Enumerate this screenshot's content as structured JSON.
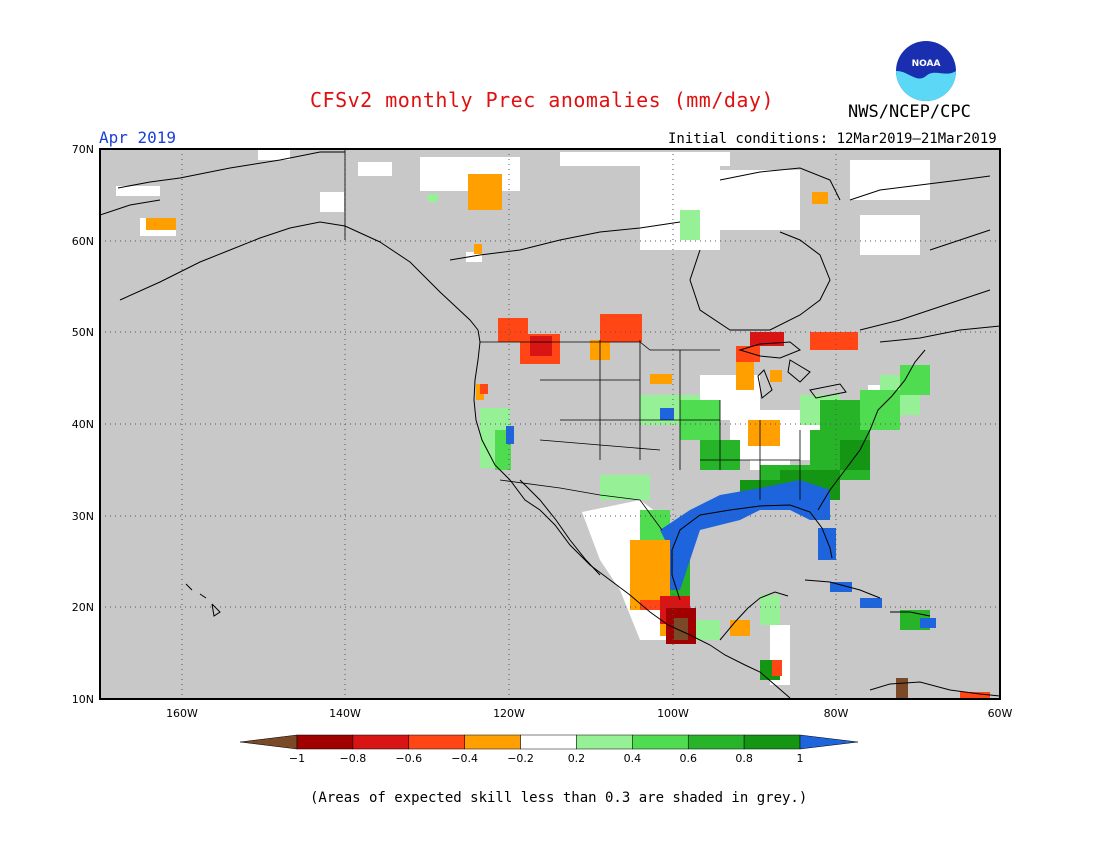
{
  "title": "CFSv2 monthly Prec anomalies (mm/day)",
  "month_label": "Apr 2019",
  "initial_conditions": "Initial conditions: 12Mar2019–21Mar2019",
  "organization": "NWS/NCEP/CPC",
  "logo_text": "NOAA",
  "caption": "(Areas of expected skill less than 0.3 are shaded in grey.)",
  "map": {
    "projection": "lat-lon",
    "lon_range": [
      -170,
      -60
    ],
    "lat_range": [
      10,
      70
    ],
    "lat_labels": [
      "70N",
      "60N",
      "50N",
      "40N",
      "30N",
      "20N",
      "10N"
    ],
    "lon_labels": [
      "160W",
      "140W",
      "120W",
      "100W",
      "80W",
      "60W"
    ],
    "grid": "dotted",
    "background_color": "#c8c8c8",
    "coast_color": "#000000",
    "anomaly_regions": [
      {
        "name": "Gulf Coast / Southeast",
        "category": ">1",
        "color": "#1e64dc"
      },
      {
        "name": "Southeast US / Carolinas",
        "category": "0.6 to 1",
        "color": "#28b428"
      },
      {
        "name": "Northeast US",
        "category": "0.2 to 0.6",
        "color": "#50dc50"
      },
      {
        "name": "Pacific Northwest / Northern Rockies",
        "category": "-0.6 to -0.2",
        "color": "#ff3c14"
      },
      {
        "name": "Southern Mexico",
        "category": "< -0.8",
        "color": "#a00000"
      },
      {
        "name": "Ohio Valley",
        "category": "-0.4 to -0.2",
        "color": "#ffa000"
      }
    ]
  },
  "colorbar": {
    "colors": [
      "#7a4a28",
      "#a00000",
      "#d81414",
      "#ff4614",
      "#ffa000",
      "#ffffff",
      "#96f096",
      "#50dc50",
      "#28b428",
      "#149614",
      "#1e64dc"
    ],
    "labels": [
      "−1",
      "−0.8",
      "−0.6",
      "−0.4",
      "−0.2",
      "0.2",
      "0.4",
      "0.6",
      "0.8",
      "1"
    ]
  }
}
